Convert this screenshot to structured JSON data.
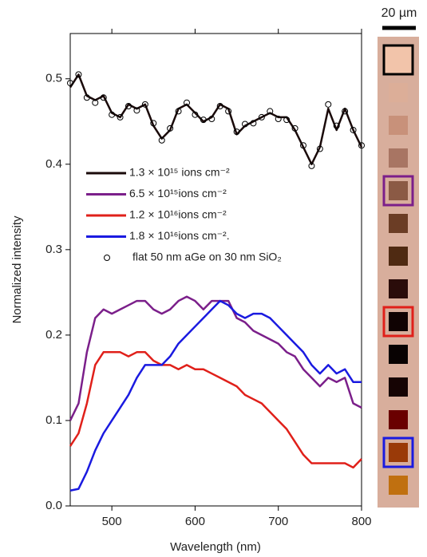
{
  "chart_data": {
    "type": "line",
    "x_label": "Wavelength (nm)",
    "y_label": "Normalized intensity",
    "x": [
      450,
      460,
      470,
      480,
      490,
      500,
      510,
      520,
      530,
      540,
      550,
      560,
      570,
      580,
      590,
      600,
      610,
      620,
      630,
      640,
      650,
      660,
      670,
      680,
      690,
      700,
      710,
      720,
      730,
      740,
      750,
      760,
      770,
      780,
      790,
      800
    ],
    "xlim": [
      450,
      800
    ],
    "xticks": [
      500,
      600,
      700,
      800
    ],
    "ylim": [
      0,
      0.553
    ],
    "yticks": [
      {
        "value": 0,
        "label": "0.0"
      },
      0.1,
      0.2,
      0.3,
      0.4,
      0.5
    ],
    "series": [
      {
        "name": "1.3 × 10¹⁵ ions cm⁻²",
        "color": "#1a0a0a",
        "style": "line",
        "values": [
          0.49,
          0.505,
          0.48,
          0.475,
          0.48,
          0.46,
          0.455,
          0.47,
          0.465,
          0.47,
          0.445,
          0.43,
          0.44,
          0.465,
          0.47,
          0.46,
          0.45,
          0.455,
          0.47,
          0.465,
          0.435,
          0.445,
          0.45,
          0.455,
          0.46,
          0.455,
          0.455,
          0.44,
          0.42,
          0.4,
          0.42,
          0.465,
          0.44,
          0.465,
          0.44,
          0.42
        ]
      },
      {
        "name": "6.5 × 10¹⁵ions cm⁻²",
        "color": "#7b1f8a",
        "style": "line",
        "values": [
          0.1,
          0.12,
          0.18,
          0.22,
          0.23,
          0.225,
          0.23,
          0.235,
          0.24,
          0.24,
          0.23,
          0.225,
          0.23,
          0.24,
          0.245,
          0.24,
          0.23,
          0.24,
          0.24,
          0.24,
          0.22,
          0.215,
          0.205,
          0.2,
          0.195,
          0.19,
          0.18,
          0.175,
          0.16,
          0.15,
          0.14,
          0.15,
          0.145,
          0.15,
          0.12,
          0.115
        ]
      },
      {
        "name": "1.2 × 10¹⁶ions cm⁻²",
        "color": "#e0201a",
        "style": "line",
        "values": [
          0.07,
          0.085,
          0.12,
          0.165,
          0.18,
          0.18,
          0.18,
          0.175,
          0.18,
          0.18,
          0.17,
          0.165,
          0.165,
          0.16,
          0.165,
          0.16,
          0.16,
          0.155,
          0.15,
          0.145,
          0.14,
          0.13,
          0.125,
          0.12,
          0.11,
          0.1,
          0.09,
          0.075,
          0.06,
          0.05,
          0.05,
          0.05,
          0.05,
          0.05,
          0.045,
          0.055
        ]
      },
      {
        "name": "1.8 × 10¹⁶ions cm⁻².",
        "color": "#1a1ae0",
        "style": "line",
        "values": [
          0.018,
          0.02,
          0.04,
          0.065,
          0.085,
          0.1,
          0.115,
          0.13,
          0.15,
          0.165,
          0.165,
          0.165,
          0.175,
          0.19,
          0.2,
          0.21,
          0.22,
          0.23,
          0.24,
          0.235,
          0.225,
          0.22,
          0.225,
          0.225,
          0.22,
          0.21,
          0.2,
          0.19,
          0.18,
          0.165,
          0.155,
          0.165,
          0.155,
          0.16,
          0.145,
          0.145
        ]
      },
      {
        "name": "flat 50 nm aGe on 30 nm SiO₂",
        "color": "#000000",
        "style": "markers",
        "values": [
          0.495,
          0.505,
          0.478,
          0.472,
          0.478,
          0.458,
          0.455,
          0.468,
          0.463,
          0.47,
          0.448,
          0.428,
          0.442,
          0.462,
          0.472,
          0.458,
          0.452,
          0.453,
          0.468,
          0.462,
          0.438,
          0.447,
          0.448,
          0.455,
          0.462,
          0.453,
          0.452,
          0.442,
          0.422,
          0.398,
          0.418,
          0.47,
          0.445,
          0.462,
          0.44,
          0.422
        ]
      }
    ],
    "scale_bar": "20 µm",
    "swatches": [
      {
        "color": "#f2c4aa",
        "outline": "#000000"
      },
      {
        "color": "#dcae98"
      },
      {
        "color": "#c8917a"
      },
      {
        "color": "#a87563"
      },
      {
        "color": "#8b5a45",
        "outline": "#7b1f8a"
      },
      {
        "color": "#6b3d25"
      },
      {
        "color": "#4f2a12"
      },
      {
        "color": "#2a0c0a"
      },
      {
        "color": "#100303",
        "outline": "#e0201a"
      },
      {
        "color": "#080202"
      },
      {
        "color": "#160404"
      },
      {
        "color": "#6a0000"
      },
      {
        "color": "#9a3a08",
        "outline": "#1a1ae0"
      },
      {
        "color": "#c07010"
      }
    ]
  }
}
